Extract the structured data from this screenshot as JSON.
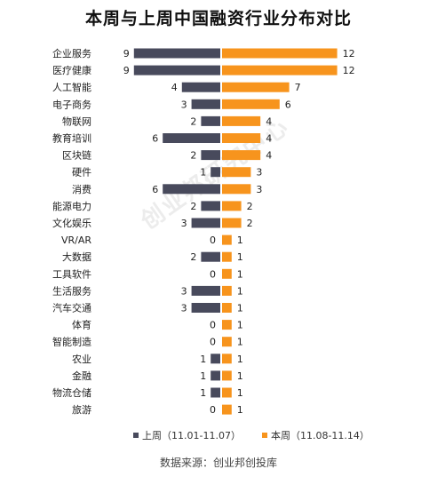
{
  "title": "本周与上周中国融资行业分布对比",
  "source": "数据来源：创业邦创投库",
  "watermark": "创业邦研究中心",
  "colors": {
    "last_week": "#484a5c",
    "this_week": "#f7941d"
  },
  "chart_data": {
    "type": "bar",
    "orientation": "horizontal-diverging",
    "categories": [
      "企业服务",
      "医疗健康",
      "人工智能",
      "电子商务",
      "物联网",
      "教育培训",
      "区块链",
      "硬件",
      "消费",
      "能源电力",
      "文化娱乐",
      "VR/AR",
      "大数据",
      "工具软件",
      "生活服务",
      "汽车交通",
      "体育",
      "智能制造",
      "农业",
      "金融",
      "物流仓储",
      "旅游"
    ],
    "series": [
      {
        "name": "上周（11.01-11.07）",
        "values": [
          9,
          9,
          4,
          3,
          2,
          6,
          2,
          1,
          6,
          2,
          3,
          0,
          2,
          0,
          3,
          3,
          0,
          0,
          1,
          1,
          1,
          0
        ]
      },
      {
        "name": "本周（11.08-11.14）",
        "values": [
          12,
          12,
          7,
          6,
          4,
          4,
          4,
          3,
          3,
          2,
          2,
          1,
          1,
          1,
          1,
          1,
          1,
          1,
          1,
          1,
          1,
          1
        ]
      }
    ],
    "legend": "bottom"
  }
}
